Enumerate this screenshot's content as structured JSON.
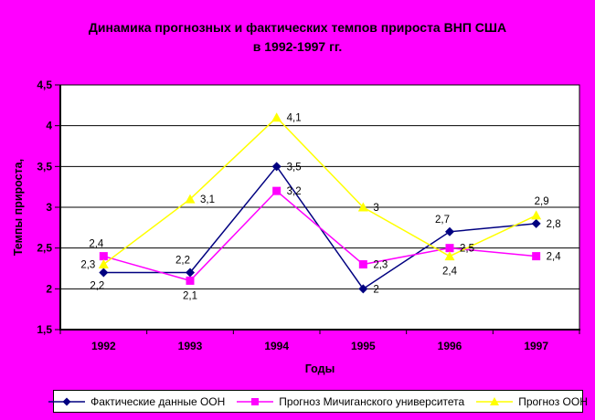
{
  "background_color": "#FF00FF",
  "title": {
    "line1": "Динамика прогнозных и фактических темпов прироста ВНП США",
    "line2": "в 1992-1997 гг."
  },
  "chart_data": {
    "type": "line",
    "title": "Динамика прогнозных и фактических темпов прироста ВНП США в 1992-1997 гг.",
    "xlabel": "Годы",
    "ylabel": "Темпы прироста,",
    "categories": [
      "1992",
      "1993",
      "1994",
      "1995",
      "1996",
      "1997"
    ],
    "ylim": [
      1.5,
      4.5
    ],
    "ytick_step": 0.5,
    "yticks": [
      {
        "label": "4,5",
        "value": 4.5
      },
      {
        "label": "4",
        "value": 4.0
      },
      {
        "label": "3,5",
        "value": 3.5
      },
      {
        "label": "3",
        "value": 3.0
      },
      {
        "label": "2,5",
        "value": 2.5
      },
      {
        "label": "2",
        "value": 2.0
      },
      {
        "label": "1,5",
        "value": 1.5
      }
    ],
    "grid": true,
    "plot_background": "#FFFFFF",
    "gridline_color": "#000000",
    "legend_position": "bottom",
    "series": [
      {
        "name": "Фактические данные ООН",
        "color": "#000080",
        "marker": "diamond",
        "values": [
          2.2,
          2.2,
          3.5,
          2.0,
          2.7,
          2.8
        ],
        "labels": [
          "2,2",
          "2,2",
          "3,5",
          "2",
          "2,7",
          "2,8"
        ],
        "label_placement": [
          "below-left",
          "above-left",
          "right",
          "right",
          "above-left",
          "right"
        ]
      },
      {
        "name": "Прогноз Мичиганского университета",
        "color": "#FF00FF",
        "marker": "square",
        "values": [
          2.4,
          2.1,
          3.2,
          2.3,
          2.5,
          2.4
        ],
        "labels": [
          "2,4",
          "2,1",
          "3,2",
          "2,3",
          "2,5",
          "2,4"
        ],
        "label_placement": [
          "above-left",
          "below",
          "right",
          "right",
          "right",
          "right"
        ]
      },
      {
        "name": "Прогноз ООН",
        "color": "#FFFF00",
        "marker": "triangle",
        "values": [
          2.3,
          3.1,
          4.1,
          3.0,
          2.4,
          2.9
        ],
        "labels": [
          "2,3",
          "3,1",
          "4,1",
          "3",
          "2,4",
          "2,9"
        ],
        "label_placement": [
          "left",
          "right",
          "right",
          "right",
          "below",
          "above-right"
        ]
      }
    ]
  }
}
